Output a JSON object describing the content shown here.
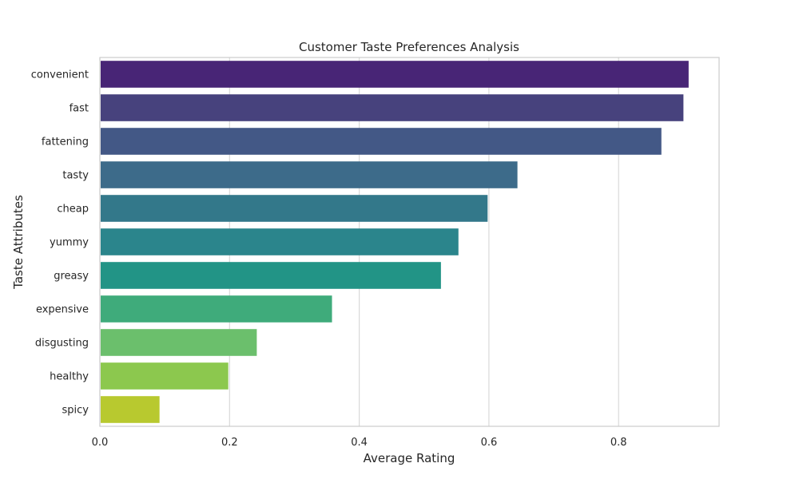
{
  "chart_data": {
    "type": "bar",
    "orientation": "horizontal",
    "title": "Customer Taste Preferences Analysis",
    "xlabel": "Average Rating",
    "ylabel": "Taste Attributes",
    "categories": [
      "convenient",
      "fast",
      "fattening",
      "tasty",
      "cheap",
      "yummy",
      "greasy",
      "expensive",
      "disgusting",
      "healthy",
      "spicy"
    ],
    "values": [
      0.908,
      0.9,
      0.866,
      0.644,
      0.598,
      0.553,
      0.526,
      0.358,
      0.242,
      0.198,
      0.092
    ],
    "colors": [
      "#482576",
      "#47427d",
      "#435886",
      "#3d6b8a",
      "#33788a",
      "#2b858c",
      "#229486",
      "#3fab7b",
      "#6bbf6c",
      "#8cc84e",
      "#b8c92f"
    ],
    "xlim": [
      0,
      0.955
    ],
    "xticks": [
      0.0,
      0.2,
      0.4,
      0.6,
      0.8
    ],
    "xtick_labels": [
      "0.0",
      "0.2",
      "0.4",
      "0.6",
      "0.8"
    ],
    "grid": true,
    "grid_axis": "x",
    "legend": "none"
  }
}
